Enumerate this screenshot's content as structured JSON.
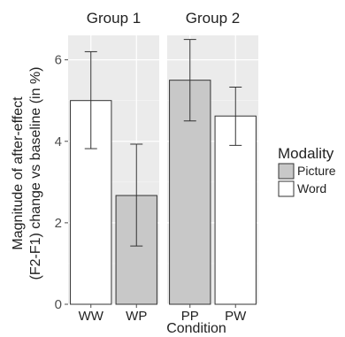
{
  "chart_data": {
    "type": "bar",
    "xlabel": "Condition",
    "ylabel_line1": "Magnitude of after-effect",
    "ylabel_line2": "(F2-F1) change vs baseline (in %)",
    "ylim": [
      0,
      6.6
    ],
    "yticks": [
      0,
      2,
      4,
      6
    ],
    "grid": true,
    "legend": {
      "title": "Modality",
      "placement": "right",
      "entries": [
        {
          "label": "Picture",
          "fill": "#c8c8c8"
        },
        {
          "label": "Word",
          "fill": "#ffffff"
        }
      ]
    },
    "panels": [
      {
        "title": "Group 1",
        "bars": [
          {
            "category": "WW",
            "modality": "Word",
            "value": 5.0,
            "err_low": 3.82,
            "err_high": 6.2
          },
          {
            "category": "WP",
            "modality": "Picture",
            "value": 2.67,
            "err_low": 1.43,
            "err_high": 3.93
          }
        ]
      },
      {
        "title": "Group 2",
        "bars": [
          {
            "category": "PP",
            "modality": "Picture",
            "value": 5.5,
            "err_low": 4.5,
            "err_high": 6.5
          },
          {
            "category": "PW",
            "modality": "Word",
            "value": 4.62,
            "err_low": 3.9,
            "err_high": 5.33
          }
        ]
      }
    ],
    "colors": {
      "panel_bg": "#ebebeb",
      "grid_major": "#ffffff",
      "bar_stroke": "#333333",
      "picture_fill": "#c8c8c8",
      "word_fill": "#ffffff"
    }
  }
}
